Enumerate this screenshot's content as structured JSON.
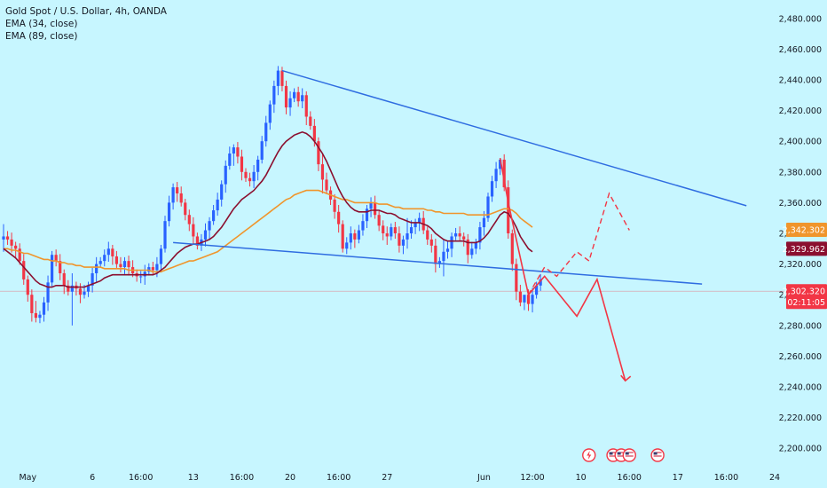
{
  "header": {
    "symbol": "Gold Spot / U.S. Dollar, 4h, OANDA",
    "indicators": [
      "EMA (34, close)",
      "EMA (89, close)"
    ]
  },
  "colors": {
    "background": "#c7f6ff",
    "bull": "#2962ff",
    "bear": "#f23645",
    "ema34": "#8b0f2f",
    "ema89": "#f0952c",
    "trendline": "#2f6de1",
    "projection": "#f23645"
  },
  "chart_data": {
    "type": "candlestick",
    "title": "Gold Spot / U.S. Dollar, 4h, OANDA",
    "y_axis": {
      "ticks": [
        2200,
        2220,
        2240,
        2260,
        2280,
        2300,
        2320,
        2340,
        2360,
        2380,
        2400,
        2420,
        2440,
        2460,
        2480
      ],
      "tick_labels": [
        "2,200.000",
        "2,220.000",
        "2,240.000",
        "2,260.000",
        "2,280.000",
        "2,300.000",
        "2,320.000",
        "2,340.000",
        "2,360.000",
        "2,380.000",
        "2,400.000",
        "2,420.000",
        "2,440.000",
        "2,460.000",
        "2,480.000"
      ],
      "ylim": [
        2188,
        2492
      ],
      "position": "right"
    },
    "x_axis": {
      "labels": [
        {
          "text": "May",
          "i": 6
        },
        {
          "text": "6",
          "i": 22
        },
        {
          "text": "16:00",
          "i": 34
        },
        {
          "text": "13",
          "i": 47
        },
        {
          "text": "16:00",
          "i": 59
        },
        {
          "text": "20",
          "i": 71
        },
        {
          "text": "16:00",
          "i": 83
        },
        {
          "text": "27",
          "i": 95
        },
        {
          "text": "Jun",
          "i": 119
        },
        {
          "text": "12:00",
          "i": 131
        },
        {
          "text": "10",
          "i": 143
        },
        {
          "text": "16:00",
          "i": 155
        },
        {
          "text": "17",
          "i": 167
        },
        {
          "text": "16:00",
          "i": 179
        },
        {
          "text": "24",
          "i": 191
        }
      ],
      "candle_spacing_bars": 1
    },
    "candles_close": [
      2338,
      2336,
      2332,
      2330,
      2322,
      2310,
      2300,
      2288,
      2285,
      2287,
      2295,
      2308,
      2326,
      2322,
      2314,
      2306,
      2302,
      2306,
      2304,
      2300,
      2302,
      2306,
      2314,
      2320,
      2322,
      2326,
      2330,
      2325,
      2320,
      2318,
      2322,
      2318,
      2314,
      2312,
      2312,
      2315,
      2318,
      2316,
      2320,
      2330,
      2348,
      2360,
      2370,
      2366,
      2360,
      2352,
      2346,
      2338,
      2332,
      2336,
      2342,
      2348,
      2355,
      2362,
      2372,
      2384,
      2392,
      2396,
      2390,
      2380,
      2376,
      2374,
      2380,
      2388,
      2400,
      2412,
      2424,
      2436,
      2446,
      2436,
      2422,
      2428,
      2432,
      2426,
      2430,
      2416,
      2410,
      2400,
      2385,
      2375,
      2368,
      2362,
      2354,
      2346,
      2330,
      2334,
      2340,
      2336,
      2342,
      2348,
      2356,
      2360,
      2352,
      2345,
      2340,
      2338,
      2344,
      2340,
      2332,
      2336,
      2340,
      2344,
      2347,
      2350,
      2342,
      2336,
      2332,
      2320,
      2322,
      2328,
      2330,
      2338,
      2340,
      2338,
      2336,
      2326,
      2330,
      2334,
      2344,
      2350,
      2364,
      2374,
      2382,
      2388,
      2370,
      2340,
      2320,
      2302,
      2295,
      2300,
      2294,
      2300,
      2306,
      2310
    ],
    "candles_range": [
      {
        "i": 0,
        "high": 2346,
        "low": 2328
      },
      {
        "i": 8,
        "high": 2296,
        "low": 2282
      },
      {
        "i": 17,
        "high": 2314,
        "low": 2280
      },
      {
        "i": 57,
        "high": 2398,
        "low": 2384
      },
      {
        "i": 68,
        "high": 2449,
        "low": 2430
      },
      {
        "i": 79,
        "high": 2392,
        "low": 2366
      },
      {
        "i": 100,
        "high": 2350,
        "low": 2330
      },
      {
        "i": 109,
        "high": 2336,
        "low": 2312
      },
      {
        "i": 123,
        "high": 2389,
        "low": 2378
      },
      {
        "i": 129,
        "high": 2298,
        "low": 2290
      }
    ],
    "ema34_values": [
      2330,
      2328,
      2326,
      2324,
      2321,
      2318,
      2315,
      2312,
      2309,
      2307,
      2306,
      2305,
      2305,
      2306,
      2306,
      2306,
      2305,
      2305,
      2305,
      2305,
      2305,
      2306,
      2307,
      2308,
      2309,
      2311,
      2312,
      2313,
      2313,
      2313,
      2313,
      2313,
      2313,
      2313,
      2313,
      2313,
      2313,
      2313,
      2314,
      2316,
      2318,
      2321,
      2324,
      2327,
      2329,
      2331,
      2332,
      2333,
      2333,
      2334,
      2335,
      2336,
      2338,
      2341,
      2344,
      2348,
      2352,
      2356,
      2359,
      2362,
      2364,
      2366,
      2368,
      2371,
      2374,
      2378,
      2383,
      2388,
      2393,
      2397,
      2400,
      2402,
      2404,
      2405,
      2406,
      2405,
      2403,
      2400,
      2396,
      2392,
      2387,
      2381,
      2375,
      2369,
      2364,
      2360,
      2357,
      2355,
      2354,
      2354,
      2354,
      2355,
      2355,
      2355,
      2354,
      2353,
      2353,
      2352,
      2350,
      2349,
      2348,
      2347,
      2347,
      2347,
      2346,
      2345,
      2343,
      2340,
      2338,
      2336,
      2335,
      2335,
      2335,
      2335,
      2335,
      2334,
      2334,
      2334,
      2335,
      2337,
      2340,
      2344,
      2348,
      2352,
      2354,
      2353,
      2349,
      2344,
      2338,
      2334,
      2330,
      2328
    ],
    "ema89_values": [
      2330,
      2330,
      2329,
      2329,
      2328,
      2327,
      2327,
      2326,
      2325,
      2324,
      2323,
      2323,
      2322,
      2322,
      2321,
      2321,
      2320,
      2320,
      2319,
      2319,
      2318,
      2318,
      2318,
      2318,
      2318,
      2317,
      2317,
      2317,
      2317,
      2317,
      2317,
      2316,
      2316,
      2316,
      2316,
      2316,
      2316,
      2315,
      2315,
      2315,
      2316,
      2317,
      2318,
      2319,
      2320,
      2321,
      2322,
      2322,
      2323,
      2324,
      2325,
      2326,
      2327,
      2328,
      2330,
      2332,
      2334,
      2336,
      2338,
      2340,
      2342,
      2344,
      2346,
      2348,
      2350,
      2352,
      2354,
      2356,
      2358,
      2360,
      2362,
      2363,
      2365,
      2366,
      2367,
      2368,
      2368,
      2368,
      2368,
      2367,
      2366,
      2365,
      2364,
      2363,
      2362,
      2362,
      2361,
      2360,
      2360,
      2360,
      2360,
      2360,
      2360,
      2359,
      2359,
      2359,
      2358,
      2357,
      2357,
      2356,
      2356,
      2356,
      2356,
      2356,
      2356,
      2355,
      2355,
      2354,
      2354,
      2353,
      2353,
      2353,
      2353,
      2353,
      2353,
      2352,
      2352,
      2352,
      2352,
      2352,
      2352,
      2353,
      2354,
      2355,
      2356,
      2356,
      2355,
      2353,
      2350,
      2348,
      2346,
      2344
    ],
    "trendlines": [
      {
        "name": "upper",
        "from": {
          "i": 69,
          "price": 2446
        },
        "to": {
          "i": 184,
          "price": 2358
        }
      },
      {
        "name": "lower",
        "from": {
          "i": 42,
          "price": 2334
        },
        "to": {
          "i": 173,
          "price": 2307
        }
      }
    ],
    "projection_solid": [
      [
        123,
        2389
      ],
      [
        125,
        2360
      ],
      [
        130,
        2300
      ],
      [
        134,
        2312
      ],
      [
        142,
        2286
      ],
      [
        147,
        2310
      ],
      [
        154,
        2244
      ]
    ],
    "projection_dashed": [
      [
        130,
        2300
      ],
      [
        134,
        2318
      ],
      [
        137,
        2312
      ],
      [
        142,
        2328
      ],
      [
        145,
        2322
      ],
      [
        150,
        2366
      ],
      [
        155,
        2342
      ]
    ],
    "price_tags": [
      {
        "label": "2,342.302",
        "price": 2342.302,
        "color": "#f0952c"
      },
      {
        "label": "2,329.962",
        "price": 2329.962,
        "color": "#8b0f2f"
      },
      {
        "label": "2,302.320",
        "price": 2302.32,
        "sub": "02:11:05",
        "color": "#f23645"
      }
    ],
    "current_price_line": 2302.32,
    "event_markers": [
      {
        "i": 145,
        "icon": "lightning-icon",
        "color": "#f23645"
      },
      {
        "i": 151,
        "icon": "us-flag-icon",
        "color": "#f23645"
      },
      {
        "i": 153,
        "icon": "us-flag-icon",
        "color": "#f23645"
      },
      {
        "i": 155,
        "icon": "us-flag-icon",
        "color": "#f23645"
      },
      {
        "i": 162,
        "icon": "us-flag-icon",
        "color": "#f23645"
      }
    ]
  }
}
